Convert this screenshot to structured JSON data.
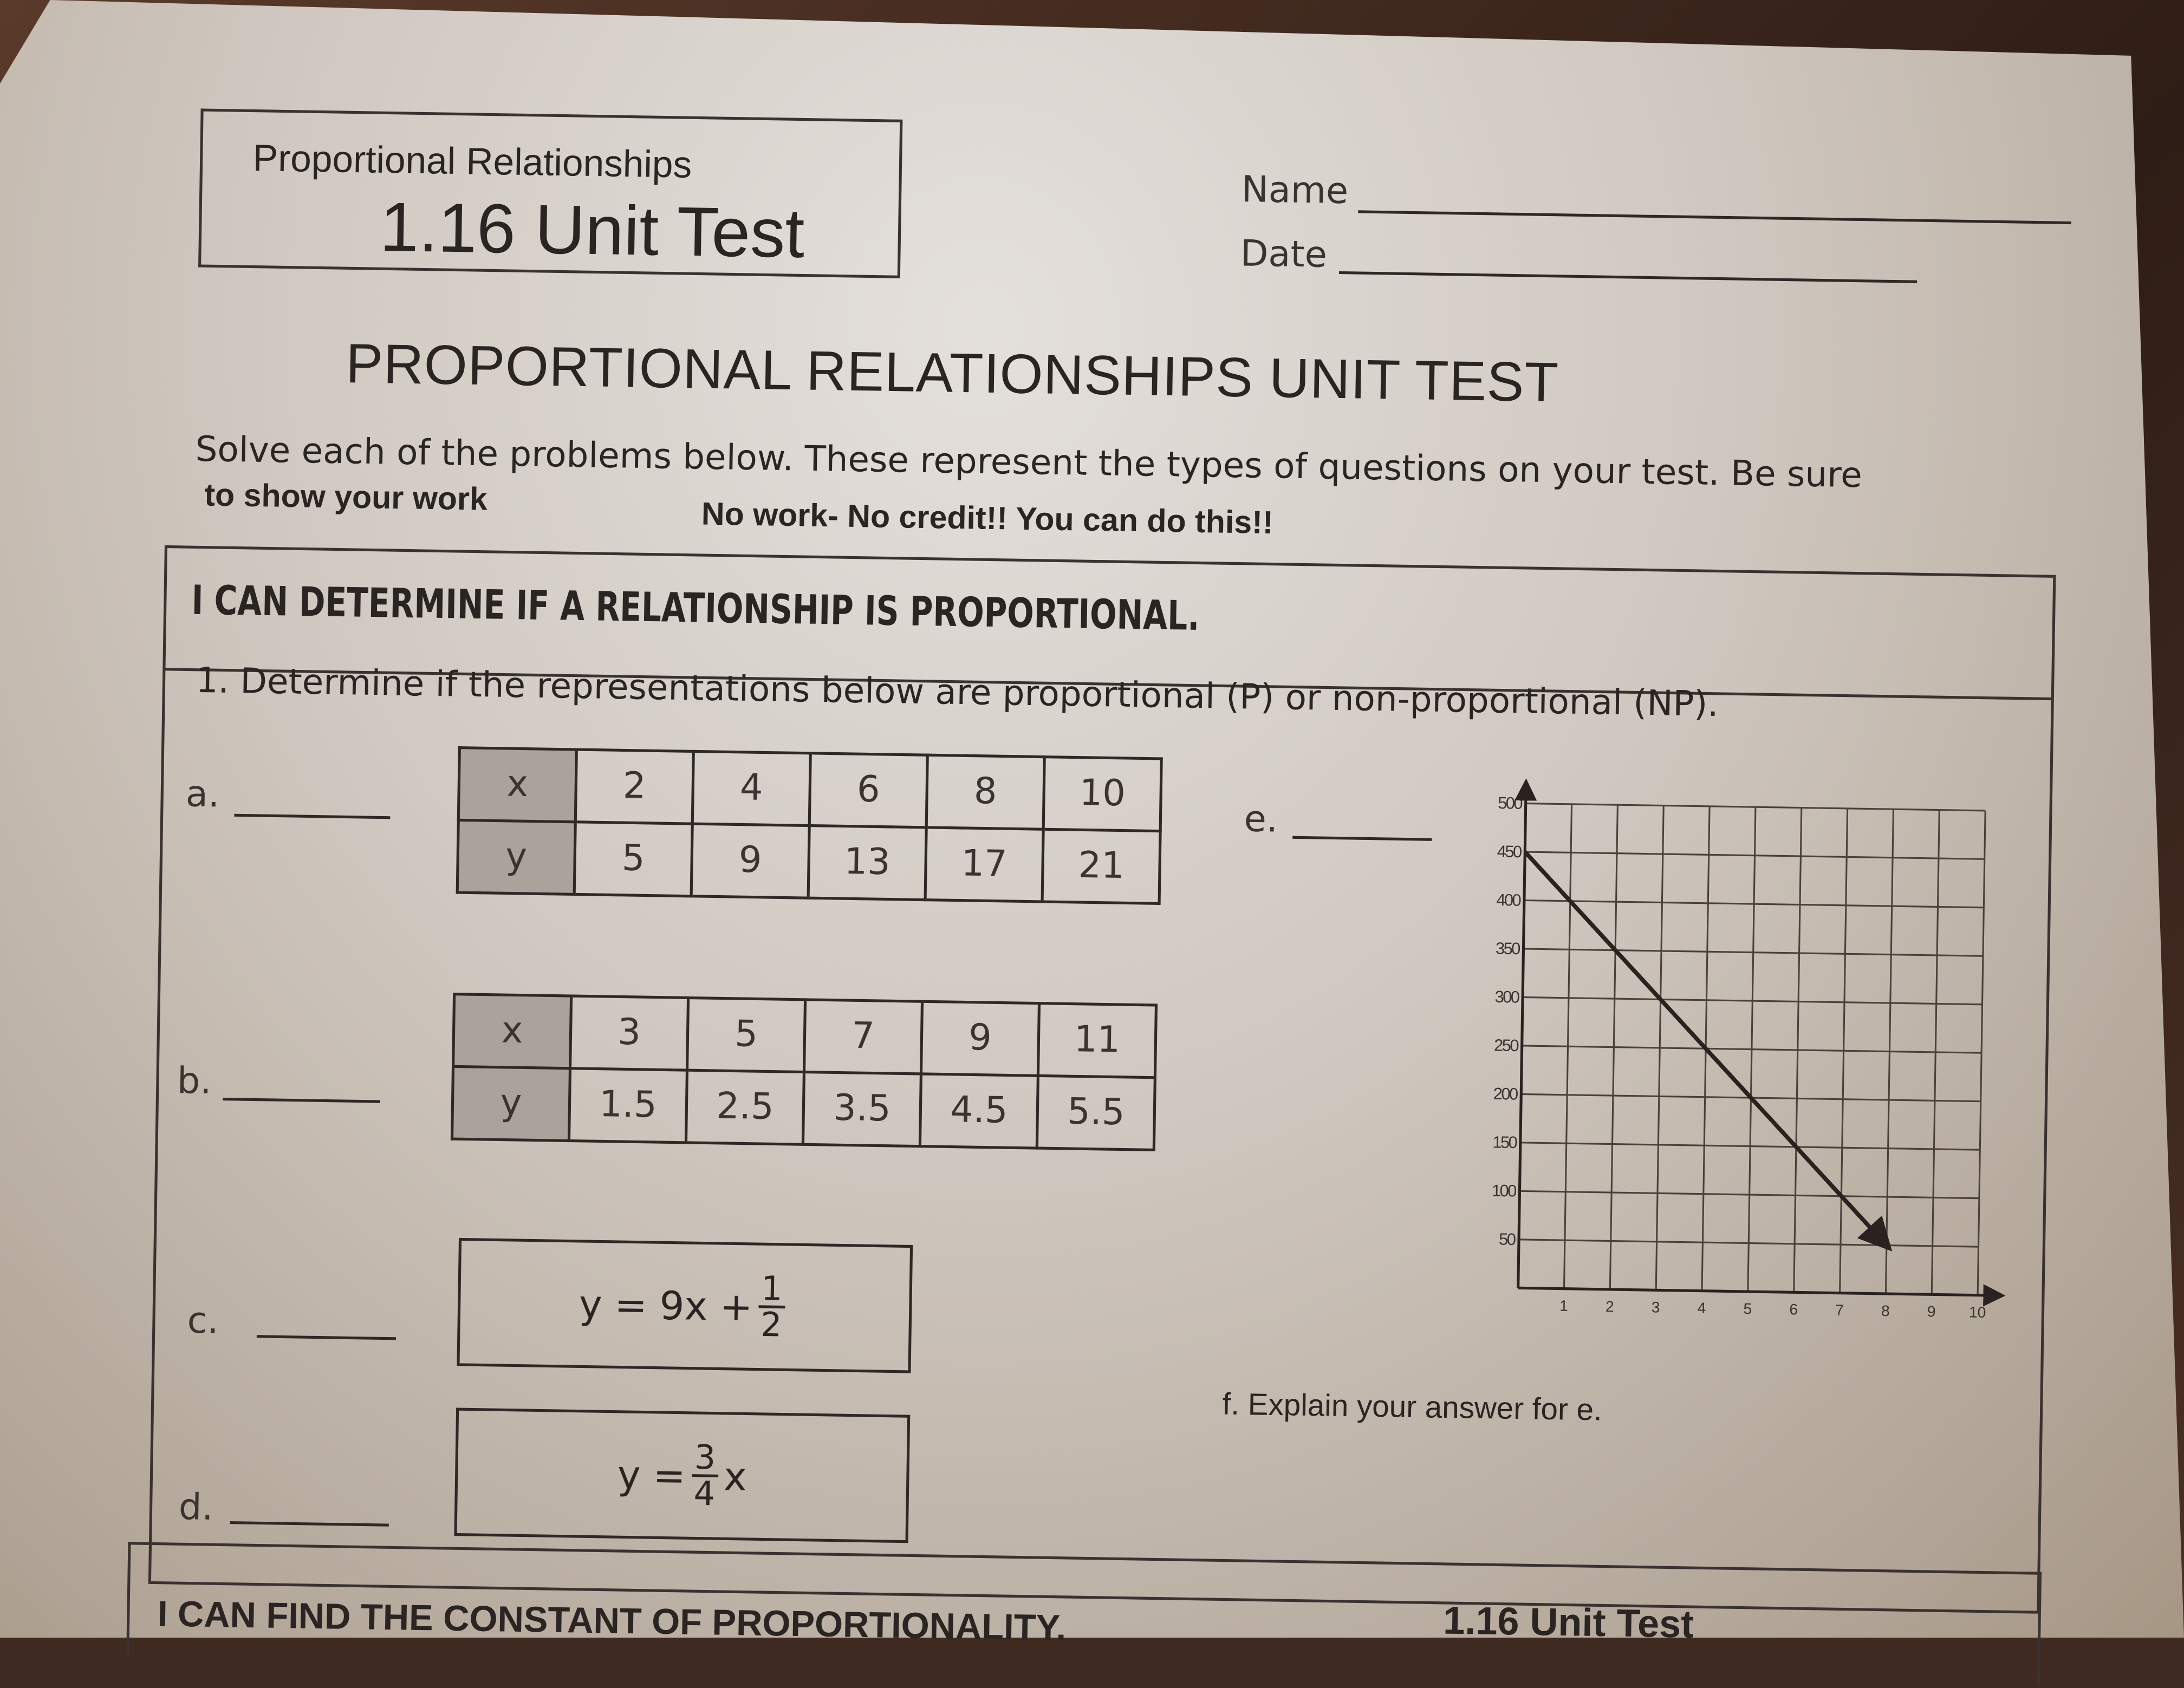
{
  "header": {
    "subtitle": "Proportional Relationships",
    "test_title": "1.16  Unit Test",
    "name_label": "Name",
    "date_label": "Date"
  },
  "main_title": "PROPORTIONAL RELATIONSHIPS UNIT TEST",
  "instructions": {
    "line1": "Solve each of the problems below.  These represent the types of questions on your test.  Be sure",
    "line2": "to show your work",
    "note": "No work- No credit!!   You can do this!!"
  },
  "section1": {
    "heading": "I CAN DETERMINE IF A RELATIONSHIP IS PROPORTIONAL.",
    "question": "1.  Determine if the representations below are proportional (P) or non-proportional (NP).",
    "a": {
      "label": "a.",
      "x_header": "x",
      "y_header": "y",
      "x": [
        "2",
        "4",
        "6",
        "8",
        "10"
      ],
      "y": [
        "5",
        "9",
        "13",
        "17",
        "21"
      ]
    },
    "b": {
      "label": "b.",
      "x_header": "x",
      "y_header": "y",
      "x": [
        "3",
        "5",
        "7",
        "9",
        "11"
      ],
      "y": [
        "1.5",
        "2.5",
        "3.5",
        "4.5",
        "5.5"
      ]
    },
    "c": {
      "label": "c.",
      "eq_left": "y = 9x +",
      "num": "1",
      "den": "2"
    },
    "d": {
      "label": "d.",
      "eq_left": "y =",
      "num": "3",
      "den": "4",
      "eq_right": "x"
    },
    "e": {
      "label": "e."
    },
    "f": {
      "label": "f.  Explain your answer for e."
    }
  },
  "chart_data": {
    "type": "line",
    "title": "",
    "xlabel": "",
    "ylabel": "",
    "xlim": [
      0,
      10
    ],
    "ylim": [
      0,
      500
    ],
    "x_ticks": [
      "1",
      "2",
      "3",
      "4",
      "5",
      "6",
      "7",
      "8",
      "9",
      "10"
    ],
    "y_ticks": [
      "50",
      "100",
      "150",
      "200",
      "250",
      "300",
      "350",
      "400",
      "450",
      "500"
    ],
    "grid": true,
    "series": [
      {
        "points": [
          [
            0,
            450
          ],
          [
            8,
            50
          ]
        ],
        "end_arrow": true,
        "color": "#2a2220"
      }
    ]
  },
  "section2": {
    "heading_partial": "I CAN FIND THE CONSTANT OF PROPORTIONALITY.",
    "footer_title": "1.16 Unit Test"
  }
}
